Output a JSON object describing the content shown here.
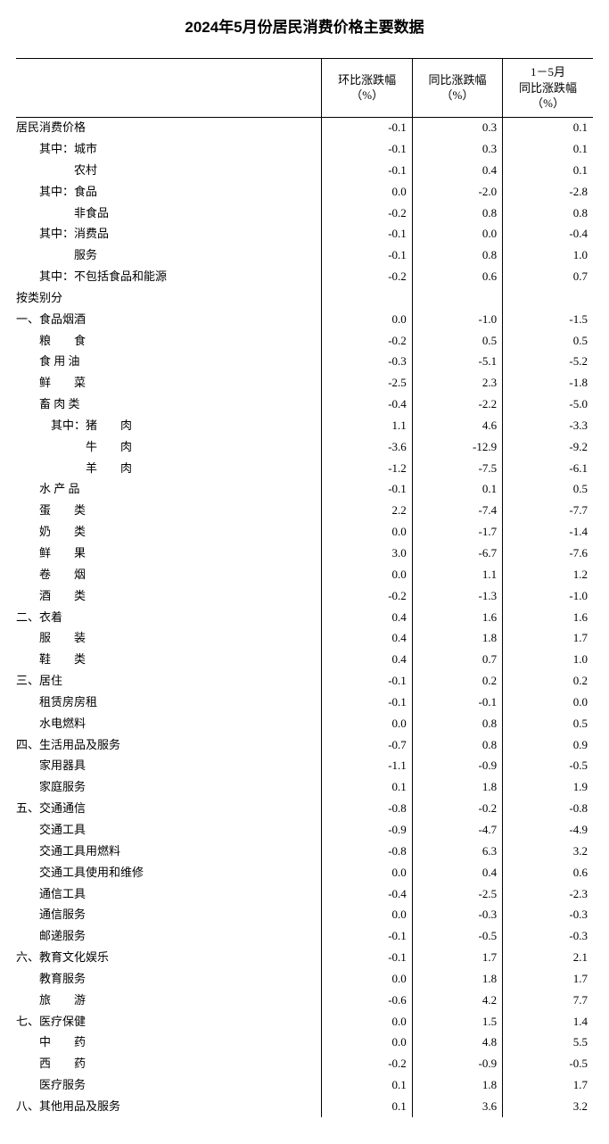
{
  "title": "2024年5月份居民消费价格主要数据",
  "columns": {
    "label": "",
    "mom": "环比涨跌幅\n（%）",
    "yoy": "同比涨跌幅\n（%）",
    "ytd": "1－5月\n同比涨跌幅\n（%）"
  },
  "rows": [
    {
      "label": "居民消费价格",
      "indent": 0,
      "mom": "-0.1",
      "yoy": "0.3",
      "ytd": "0.1"
    },
    {
      "label": "其中：城市",
      "indent": 1,
      "mom": "-0.1",
      "yoy": "0.3",
      "ytd": "0.1"
    },
    {
      "label": "农村",
      "indent": 3,
      "mom": "-0.1",
      "yoy": "0.4",
      "ytd": "0.1"
    },
    {
      "label": "其中：食品",
      "indent": 1,
      "mom": "0.0",
      "yoy": "-2.0",
      "ytd": "-2.8"
    },
    {
      "label": "非食品",
      "indent": 3,
      "mom": "-0.2",
      "yoy": "0.8",
      "ytd": "0.8"
    },
    {
      "label": "其中：消费品",
      "indent": 1,
      "mom": "-0.1",
      "yoy": "0.0",
      "ytd": "-0.4"
    },
    {
      "label": "服务",
      "indent": 3,
      "mom": "-0.1",
      "yoy": "0.8",
      "ytd": "1.0"
    },
    {
      "label": "其中：不包括食品和能源",
      "indent": 1,
      "mom": "-0.2",
      "yoy": "0.6",
      "ytd": "0.7"
    },
    {
      "label": "按类别分",
      "indent": 0,
      "mom": "",
      "yoy": "",
      "ytd": ""
    },
    {
      "label": "一、食品烟酒",
      "indent": 0,
      "mom": "0.0",
      "yoy": "-1.0",
      "ytd": "-1.5"
    },
    {
      "label": "粮　　食",
      "indent": 1,
      "mom": "-0.2",
      "yoy": "0.5",
      "ytd": "0.5"
    },
    {
      "label": "食 用 油",
      "indent": 1,
      "mom": "-0.3",
      "yoy": "-5.1",
      "ytd": "-5.2"
    },
    {
      "label": "鲜　　菜",
      "indent": 1,
      "mom": "-2.5",
      "yoy": "2.3",
      "ytd": "-1.8"
    },
    {
      "label": "畜 肉 类",
      "indent": 1,
      "mom": "-0.4",
      "yoy": "-2.2",
      "ytd": "-5.0"
    },
    {
      "label": "其中：猪　　肉",
      "indent": 2,
      "mom": "1.1",
      "yoy": "4.6",
      "ytd": "-3.3"
    },
    {
      "label": "牛　　肉",
      "indent": 4,
      "mom": "-3.6",
      "yoy": "-12.9",
      "ytd": "-9.2"
    },
    {
      "label": "羊　　肉",
      "indent": 4,
      "mom": "-1.2",
      "yoy": "-7.5",
      "ytd": "-6.1"
    },
    {
      "label": "水 产 品",
      "indent": 1,
      "mom": "-0.1",
      "yoy": "0.1",
      "ytd": "0.5"
    },
    {
      "label": "蛋　　类",
      "indent": 1,
      "mom": "2.2",
      "yoy": "-7.4",
      "ytd": "-7.7"
    },
    {
      "label": "奶　　类",
      "indent": 1,
      "mom": "0.0",
      "yoy": "-1.7",
      "ytd": "-1.4"
    },
    {
      "label": "鲜　　果",
      "indent": 1,
      "mom": "3.0",
      "yoy": "-6.7",
      "ytd": "-7.6"
    },
    {
      "label": "卷　　烟",
      "indent": 1,
      "mom": "0.0",
      "yoy": "1.1",
      "ytd": "1.2"
    },
    {
      "label": "酒　　类",
      "indent": 1,
      "mom": "-0.2",
      "yoy": "-1.3",
      "ytd": "-1.0"
    },
    {
      "label": "二、衣着",
      "indent": 0,
      "mom": "0.4",
      "yoy": "1.6",
      "ytd": "1.6"
    },
    {
      "label": "服　　装",
      "indent": 1,
      "mom": "0.4",
      "yoy": "1.8",
      "ytd": "1.7"
    },
    {
      "label": "鞋　　类",
      "indent": 1,
      "mom": "0.4",
      "yoy": "0.7",
      "ytd": "1.0"
    },
    {
      "label": "三、居住",
      "indent": 0,
      "mom": "-0.1",
      "yoy": "0.2",
      "ytd": "0.2"
    },
    {
      "label": "租赁房房租",
      "indent": 1,
      "mom": "-0.1",
      "yoy": "-0.1",
      "ytd": "0.0"
    },
    {
      "label": "水电燃料",
      "indent": 1,
      "mom": "0.0",
      "yoy": "0.8",
      "ytd": "0.5"
    },
    {
      "label": "四、生活用品及服务",
      "indent": 0,
      "mom": "-0.7",
      "yoy": "0.8",
      "ytd": "0.9"
    },
    {
      "label": "家用器具",
      "indent": 1,
      "mom": "-1.1",
      "yoy": "-0.9",
      "ytd": "-0.5"
    },
    {
      "label": "家庭服务",
      "indent": 1,
      "mom": "0.1",
      "yoy": "1.8",
      "ytd": "1.9"
    },
    {
      "label": "五、交通通信",
      "indent": 0,
      "mom": "-0.8",
      "yoy": "-0.2",
      "ytd": "-0.8"
    },
    {
      "label": "交通工具",
      "indent": 1,
      "mom": "-0.9",
      "yoy": "-4.7",
      "ytd": "-4.9"
    },
    {
      "label": "交通工具用燃料",
      "indent": 1,
      "mom": "-0.8",
      "yoy": "6.3",
      "ytd": "3.2"
    },
    {
      "label": "交通工具使用和维修",
      "indent": 1,
      "mom": "0.0",
      "yoy": "0.4",
      "ytd": "0.6"
    },
    {
      "label": "通信工具",
      "indent": 1,
      "mom": "-0.4",
      "yoy": "-2.5",
      "ytd": "-2.3"
    },
    {
      "label": "通信服务",
      "indent": 1,
      "mom": "0.0",
      "yoy": "-0.3",
      "ytd": "-0.3"
    },
    {
      "label": "邮递服务",
      "indent": 1,
      "mom": "-0.1",
      "yoy": "-0.5",
      "ytd": "-0.3"
    },
    {
      "label": "六、教育文化娱乐",
      "indent": 0,
      "mom": "-0.1",
      "yoy": "1.7",
      "ytd": "2.1"
    },
    {
      "label": "教育服务",
      "indent": 1,
      "mom": "0.0",
      "yoy": "1.8",
      "ytd": "1.7"
    },
    {
      "label": "旅　　游",
      "indent": 1,
      "mom": "-0.6",
      "yoy": "4.2",
      "ytd": "7.7"
    },
    {
      "label": "七、医疗保健",
      "indent": 0,
      "mom": "0.0",
      "yoy": "1.5",
      "ytd": "1.4"
    },
    {
      "label": "中　　药",
      "indent": 1,
      "mom": "0.0",
      "yoy": "4.8",
      "ytd": "5.5"
    },
    {
      "label": "西　　药",
      "indent": 1,
      "mom": "-0.2",
      "yoy": "-0.9",
      "ytd": "-0.5"
    },
    {
      "label": "医疗服务",
      "indent": 1,
      "mom": "0.1",
      "yoy": "1.8",
      "ytd": "1.7"
    },
    {
      "label": "八、其他用品及服务",
      "indent": 0,
      "mom": "0.1",
      "yoy": "3.6",
      "ytd": "3.2"
    }
  ],
  "indent_map": {
    "0": "",
    "1": "　　",
    "2": "　　　",
    "3": "　　　　　",
    "4": "　　　　　　"
  }
}
